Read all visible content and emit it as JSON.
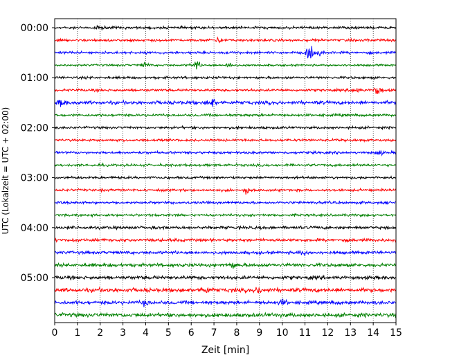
{
  "chart_data": {
    "type": "line",
    "title": "",
    "xlabel": "Zeit  [min]",
    "ylabel": "UTC (Lokalzeit = UTC + 02:00)",
    "xlim": [
      0,
      15
    ],
    "x_ticks": [
      0,
      1,
      2,
      3,
      4,
      5,
      6,
      7,
      8,
      9,
      10,
      11,
      12,
      13,
      14,
      15
    ],
    "y_tick_labels": [
      "00:00",
      "01:00",
      "02:00",
      "03:00",
      "04:00",
      "05:00"
    ],
    "grid": "vertical dotted",
    "trace_minutes_per_row": 15,
    "colors": [
      "#000000",
      "#ff0000",
      "#0000ff",
      "#008000"
    ],
    "series": [
      {
        "row": 0,
        "start": "00:00",
        "color": "#000000",
        "amplitude": 2.5,
        "events": [
          {
            "t": 2.0,
            "a": 3
          }
        ]
      },
      {
        "row": 1,
        "start": "00:15",
        "color": "#ff0000",
        "amplitude": 2.5,
        "events": [
          {
            "t": 7.2,
            "a": 4
          }
        ]
      },
      {
        "row": 2,
        "start": "00:30",
        "color": "#0000ff",
        "amplitude": 2.5,
        "events": [
          {
            "t": 11.25,
            "a": 13
          },
          {
            "t": 11.7,
            "a": 4
          }
        ]
      },
      {
        "row": 3,
        "start": "00:45",
        "color": "#008000",
        "amplitude": 2.0,
        "events": [
          {
            "t": 6.2,
            "a": 10
          },
          {
            "t": 7.7,
            "a": 5
          },
          {
            "t": 4.0,
            "a": 4
          }
        ]
      },
      {
        "row": 4,
        "start": "01:00",
        "color": "#000000",
        "amplitude": 2.5,
        "events": []
      },
      {
        "row": 5,
        "start": "01:15",
        "color": "#ff0000",
        "amplitude": 2.5,
        "events": [
          {
            "t": 14.2,
            "a": 8
          },
          {
            "t": 13.2,
            "a": 5
          }
        ]
      },
      {
        "row": 6,
        "start": "01:30",
        "color": "#0000ff",
        "amplitude": 3.5,
        "events": [
          {
            "t": 6.9,
            "a": 8
          },
          {
            "t": 0.3,
            "a": 5
          }
        ]
      },
      {
        "row": 7,
        "start": "01:45",
        "color": "#008000",
        "amplitude": 2.5,
        "events": []
      },
      {
        "row": 8,
        "start": "02:00",
        "color": "#000000",
        "amplitude": 2.5,
        "events": []
      },
      {
        "row": 9,
        "start": "02:15",
        "color": "#ff0000",
        "amplitude": 2.5,
        "events": []
      },
      {
        "row": 10,
        "start": "02:30",
        "color": "#0000ff",
        "amplitude": 2.5,
        "events": [
          {
            "t": 14.3,
            "a": 3
          }
        ]
      },
      {
        "row": 11,
        "start": "02:45",
        "color": "#008000",
        "amplitude": 2.5,
        "events": []
      },
      {
        "row": 12,
        "start": "03:00",
        "color": "#000000",
        "amplitude": 2.5,
        "events": []
      },
      {
        "row": 13,
        "start": "03:15",
        "color": "#ff0000",
        "amplitude": 2.5,
        "events": [
          {
            "t": 8.5,
            "a": 7
          }
        ]
      },
      {
        "row": 14,
        "start": "03:30",
        "color": "#0000ff",
        "amplitude": 2.5,
        "events": []
      },
      {
        "row": 15,
        "start": "03:45",
        "color": "#008000",
        "amplitude": 2.5,
        "events": []
      },
      {
        "row": 16,
        "start": "04:00",
        "color": "#000000",
        "amplitude": 3.0,
        "events": []
      },
      {
        "row": 17,
        "start": "04:15",
        "color": "#ff0000",
        "amplitude": 3.0,
        "events": []
      },
      {
        "row": 18,
        "start": "04:30",
        "color": "#0000ff",
        "amplitude": 3.0,
        "events": [
          {
            "t": 10.9,
            "a": 4
          }
        ]
      },
      {
        "row": 19,
        "start": "04:45",
        "color": "#008000",
        "amplitude": 3.5,
        "events": [
          {
            "t": 7.8,
            "a": 5
          }
        ]
      },
      {
        "row": 20,
        "start": "05:00",
        "color": "#000000",
        "amplitude": 3.5,
        "events": []
      },
      {
        "row": 21,
        "start": "05:15",
        "color": "#ff0000",
        "amplitude": 4.0,
        "events": [
          {
            "t": 6.6,
            "a": 6
          },
          {
            "t": 9.0,
            "a": 6
          }
        ]
      },
      {
        "row": 22,
        "start": "05:30",
        "color": "#0000ff",
        "amplitude": 3.5,
        "events": [
          {
            "t": 4.0,
            "a": 4
          },
          {
            "t": 10.0,
            "a": 4
          }
        ]
      },
      {
        "row": 23,
        "start": "05:45",
        "color": "#008000",
        "amplitude": 4.0,
        "events": []
      }
    ]
  }
}
